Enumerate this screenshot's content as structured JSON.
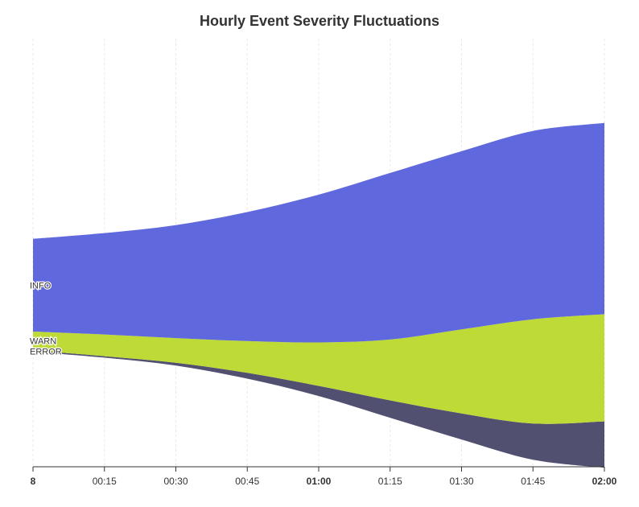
{
  "chart_data": {
    "type": "area",
    "subtype": "streamgraph",
    "title": "Hourly Event Severity Fluctuations",
    "xlabel": "",
    "ylabel": "",
    "x": [
      0,
      15,
      30,
      45,
      60,
      75,
      90,
      105,
      120
    ],
    "x_tick_labels": [
      {
        "label": "8",
        "major": true
      },
      {
        "label": "00:15",
        "major": false
      },
      {
        "label": "00:30",
        "major": false
      },
      {
        "label": "00:45",
        "major": false
      },
      {
        "label": "01:00",
        "major": true
      },
      {
        "label": "01:15",
        "major": false
      },
      {
        "label": "01:30",
        "major": false
      },
      {
        "label": "01:45",
        "major": false
      },
      {
        "label": "02:00",
        "major": true
      }
    ],
    "grid": true,
    "legend": "inline labels at left",
    "baseline": "wiggle",
    "series": [
      {
        "name": "ERROR",
        "color": "#515070",
        "values": [
          1,
          1,
          2,
          4,
          7,
          12,
          18,
          25,
          32
        ]
      },
      {
        "name": "WARN",
        "color": "#bdda37",
        "values": [
          13,
          15,
          17,
          22,
          30,
          42,
          58,
          72,
          74
        ]
      },
      {
        "name": "INFO",
        "color": "#6068dd",
        "values": [
          64,
          70,
          78,
          89,
          102,
          115,
          123,
          130,
          132
        ]
      }
    ]
  }
}
